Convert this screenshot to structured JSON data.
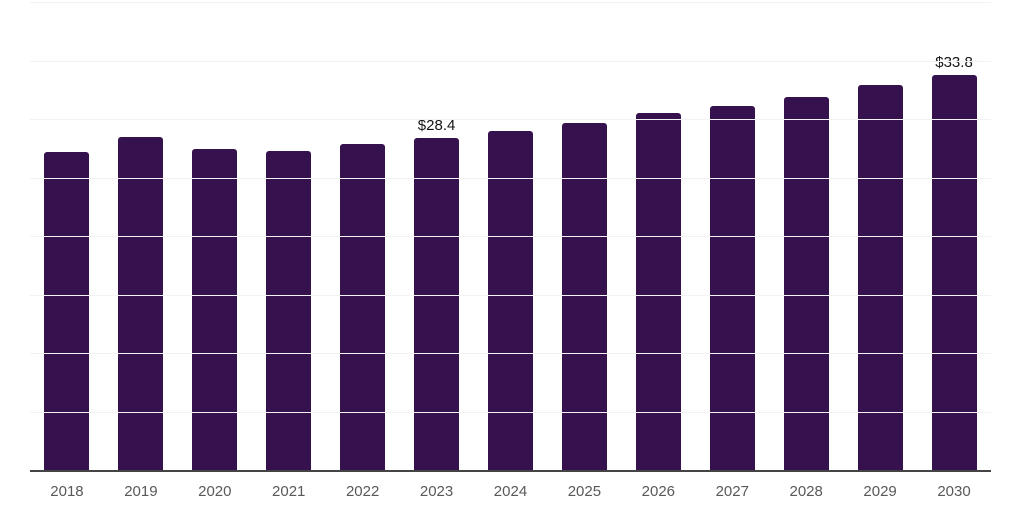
{
  "chart_data": {
    "type": "bar",
    "title": "",
    "categories": [
      "2018",
      "2019",
      "2020",
      "2021",
      "2022",
      "2023",
      "2024",
      "2025",
      "2026",
      "2027",
      "2028",
      "2029",
      "2030"
    ],
    "values": [
      27.2,
      28.5,
      27.4,
      27.3,
      27.9,
      28.4,
      29.0,
      29.7,
      30.5,
      31.1,
      31.9,
      32.9,
      33.8
    ],
    "data_labels": {
      "2023": "$28.4",
      "2030": "$33.8"
    },
    "xlabel": "",
    "ylabel": "",
    "ylim": [
      0,
      40
    ],
    "gridline_step": 5,
    "grid": true,
    "y_tick_labels_visible": false,
    "legend": "none",
    "colors": {
      "bar": "#35114E",
      "gridline": "#f2f2f2",
      "axis_line": "#444444",
      "tick_label": "#595959",
      "data_label": "#141414",
      "background": "#ffffff"
    }
  }
}
